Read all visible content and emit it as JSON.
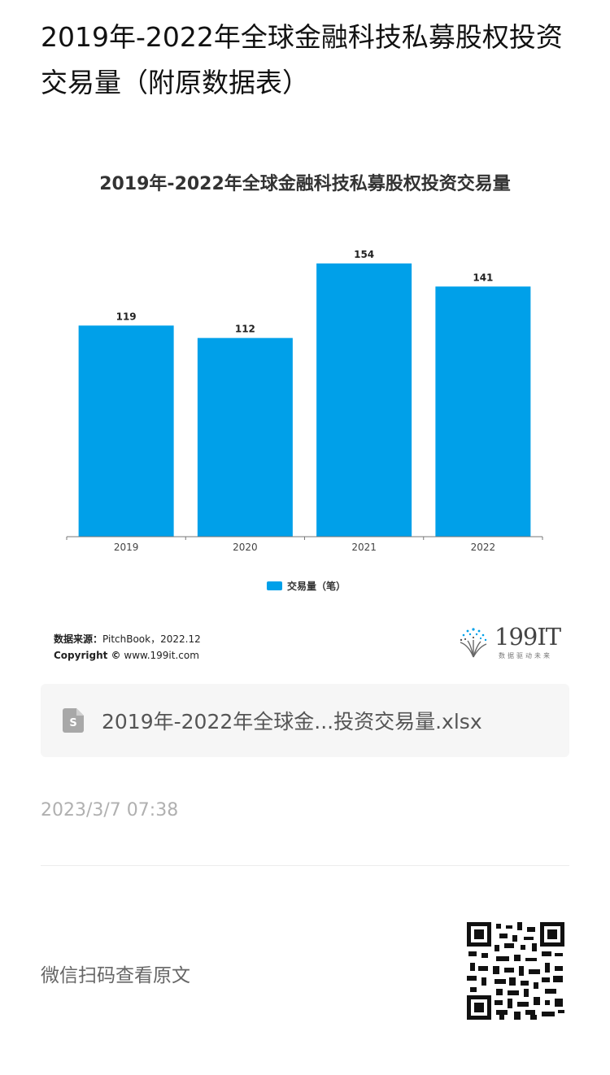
{
  "page": {
    "title": "2019年-2022年全球金融科技私募股权投资交易量（附原数据表）"
  },
  "chart_data": {
    "type": "bar",
    "title": "2019年-2022年全球金融科技私募股权投资交易量",
    "categories": [
      "2019",
      "2020",
      "2021",
      "2022"
    ],
    "series": [
      {
        "name": "交易量（笔）",
        "values": [
          119,
          112,
          154,
          141
        ],
        "color": "#00a0e9"
      }
    ],
    "data_labels": true,
    "ylim": [
      0,
      165
    ],
    "grid": false,
    "legend_position": "bottom-center"
  },
  "source": {
    "label": "数据来源：",
    "value": "PitchBook，2022.12",
    "copyright_label": "Copyright ©",
    "copyright_value": "www.199it.com"
  },
  "logo": {
    "text": "199IT",
    "slogan": "数据驱动未来"
  },
  "attachment": {
    "file_name": "2019年-2022年全球金...投资交易量.xlsx",
    "icon": "spreadsheet-file-icon"
  },
  "timestamp": "2023/3/7 07:38",
  "footer": {
    "scan_text": "微信扫码查看原文",
    "qr_icon": "qr-code-icon"
  }
}
